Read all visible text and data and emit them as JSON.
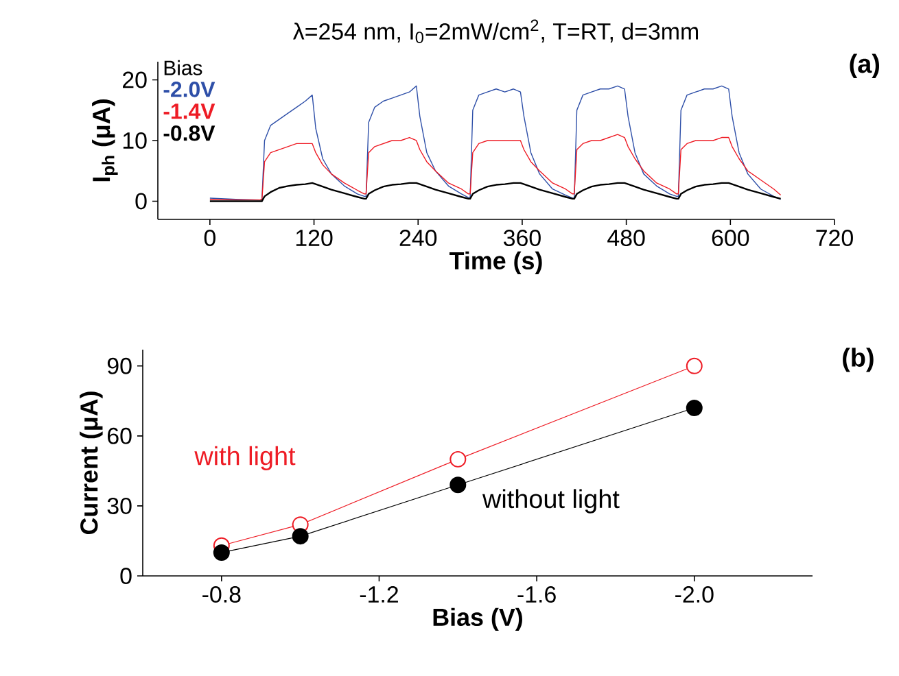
{
  "chart_data": [
    {
      "type": "line",
      "title": "λ=254 nm, I$_{0}$=2mW/cm$^{2}$, T=RT, d=3mm",
      "xlabel": "Time (s)",
      "ylabel": "I$_{ph}$ (μA)",
      "legend_title": "Bias",
      "legend": "top left",
      "x": [
        0,
        30,
        58,
        60,
        63,
        70,
        80,
        90,
        100,
        110,
        118,
        122,
        130,
        140,
        155,
        170,
        178,
        180,
        183,
        190,
        200,
        210,
        220,
        230,
        238,
        242,
        250,
        260,
        275,
        290,
        298,
        300,
        303,
        310,
        320,
        330,
        340,
        350,
        358,
        362,
        370,
        380,
        395,
        410,
        418,
        420,
        423,
        430,
        440,
        450,
        460,
        470,
        478,
        482,
        490,
        500,
        515,
        530,
        538,
        540,
        543,
        550,
        560,
        570,
        580,
        590,
        598,
        602,
        610,
        620,
        635,
        650,
        658
      ],
      "series": [
        {
          "name": "-2.0V",
          "color": "#2e4fa8",
          "values": [
            0.5,
            0.3,
            0.2,
            0.3,
            10,
            12.5,
            13.5,
            14.5,
            15.5,
            16.5,
            17.5,
            12,
            7,
            4.5,
            2.5,
            1.2,
            0.8,
            0.8,
            13,
            15.5,
            16.5,
            17,
            17.5,
            18,
            19,
            14,
            8,
            5,
            2.5,
            1.2,
            0.6,
            0.6,
            15,
            17.5,
            18,
            18.5,
            18,
            18.5,
            18,
            14,
            8,
            4.5,
            2,
            1,
            0.5,
            0.5,
            15,
            17.5,
            18,
            18.5,
            18.5,
            19,
            18.5,
            14,
            8,
            4.5,
            2.5,
            1.2,
            0.8,
            0.8,
            15,
            17.5,
            18,
            18.5,
            18.5,
            19,
            18.5,
            14,
            8,
            4.5,
            2,
            0.8,
            0.3
          ]
        },
        {
          "name": "-1.4V",
          "color": "#ee1c25",
          "values": [
            0.3,
            0.2,
            0.2,
            0.3,
            6.5,
            8,
            8.5,
            9,
            9.5,
            9.5,
            9.5,
            8,
            6,
            4.5,
            3,
            1.8,
            1.2,
            1.2,
            8,
            9,
            9.5,
            10,
            10,
            10.5,
            10,
            8.5,
            6.5,
            5,
            3,
            2,
            1.2,
            1.2,
            8,
            9.5,
            10,
            10,
            10,
            10,
            10,
            8.5,
            6.5,
            5,
            3,
            2,
            1.2,
            1.2,
            8.5,
            9.5,
            10,
            10,
            10.5,
            11,
            10.5,
            9,
            7,
            5,
            3,
            2,
            1.2,
            1.2,
            8.5,
            9.5,
            10,
            10,
            10,
            10.5,
            10.5,
            9,
            7,
            5,
            3.5,
            2,
            1
          ]
        },
        {
          "name": "-0.8V",
          "color": "#000000",
          "values": [
            0,
            0,
            0,
            0,
            0.8,
            1.5,
            2.2,
            2.5,
            2.7,
            2.8,
            3,
            2.8,
            2.4,
            1.9,
            1.3,
            0.7,
            0.4,
            0.4,
            1.2,
            1.8,
            2.4,
            2.7,
            2.8,
            3,
            3,
            2.8,
            2.4,
            1.9,
            1.3,
            0.7,
            0.4,
            0.4,
            1.2,
            1.8,
            2.4,
            2.7,
            2.8,
            3,
            3,
            2.8,
            2.4,
            1.9,
            1.3,
            0.7,
            0.4,
            0.4,
            1.2,
            1.8,
            2.4,
            2.7,
            2.8,
            3,
            3,
            2.8,
            2.4,
            1.9,
            1.3,
            0.7,
            0.4,
            0.4,
            1.2,
            1.8,
            2.4,
            2.7,
            2.8,
            3,
            3,
            2.8,
            2.4,
            1.9,
            1.3,
            0.7,
            0.4
          ]
        }
      ],
      "xlim": [
        -60,
        720
      ],
      "xticks": [
        0,
        120,
        240,
        360,
        480,
        600,
        720
      ],
      "ylim": [
        -3,
        23
      ],
      "yticks": [
        0,
        10,
        20
      ],
      "annotations": [
        "(a)"
      ]
    },
    {
      "type": "line",
      "xlabel": "Bias (V)",
      "ylabel": "Current (μA)",
      "marker": "circle",
      "x": [
        -0.8,
        -1.0,
        -1.4,
        -2.0
      ],
      "series": [
        {
          "name": "with light",
          "color": "#ee1c25",
          "values": [
            13,
            22,
            50,
            90
          ]
        },
        {
          "name": "without light",
          "color": "#000000",
          "values": [
            10,
            17,
            39,
            72
          ]
        }
      ],
      "xlim": [
        -0.6,
        -2.3
      ],
      "xticks": [
        -0.8,
        -1.2,
        -1.6,
        {
          "value": -2.0,
          "label": "-2.0"
        }
      ],
      "ylim": [
        0,
        97
      ],
      "yticks": [
        0,
        30,
        60,
        90
      ],
      "annotations": [
        "(b)"
      ]
    }
  ]
}
